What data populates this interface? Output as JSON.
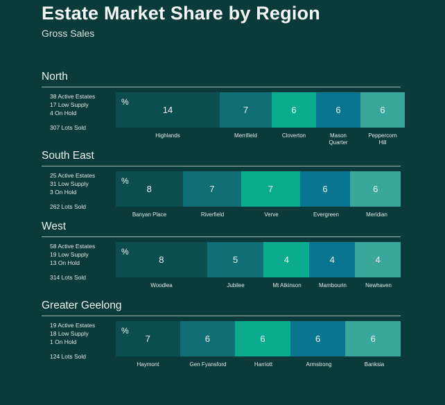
{
  "title": "Estate Market Share by Region",
  "subtitle": "Gross Sales",
  "colors": {
    "background": "#0b3a3a",
    "seg_dark": "#0c4d4e",
    "seg_teal": "#0f6f75",
    "seg_green": "#0bab8f",
    "seg_blue": "#0a7590",
    "seg_light": "#3aa79c"
  },
  "chart_data": {
    "type": "bar",
    "unit_symbol": "%",
    "regions": [
      {
        "name": "North",
        "stats": {
          "active": "38 Active Estates",
          "low": "17 Low Supply",
          "hold": "4 On Hold",
          "lots": "307 Lots Sold"
        },
        "categories": [
          "Highlands",
          "Merrifield",
          "Cloverton",
          "Mason Quarter",
          "Peppercorn Hill"
        ],
        "values": [
          14,
          7,
          6,
          6,
          6
        ]
      },
      {
        "name": "South East",
        "stats": {
          "active": "25 Active Estates",
          "low": "31 Low Supply",
          "hold": "3 On Hold",
          "lots": "262 Lots Sold"
        },
        "categories": [
          "Banyan Place",
          "Riverfield",
          "Verve",
          "Evergreen",
          "Meridian"
        ],
        "values": [
          8,
          7,
          7,
          6,
          6
        ]
      },
      {
        "name": "West",
        "stats": {
          "active": "58 Active Estates",
          "low": "19 Low Supply",
          "hold": "13 On Hold",
          "lots": "314 Lots Sold"
        },
        "categories": [
          "Woodlea",
          "Jubilee",
          "Mt Atkinson",
          "Mambourin",
          "Newhaven"
        ],
        "values": [
          8,
          5,
          4,
          4,
          4
        ]
      },
      {
        "name": "Greater Geelong",
        "stats": {
          "active": "19 Active Estates",
          "low": "18 Low Supply",
          "hold": "1 On Hold",
          "lots": "124 Lots Sold"
        },
        "categories": [
          "Haymont",
          "Gen Fyansford",
          "Harriott",
          "Armstrong",
          "Banksia"
        ],
        "values": [
          7,
          6,
          6,
          6,
          6
        ]
      }
    ]
  }
}
